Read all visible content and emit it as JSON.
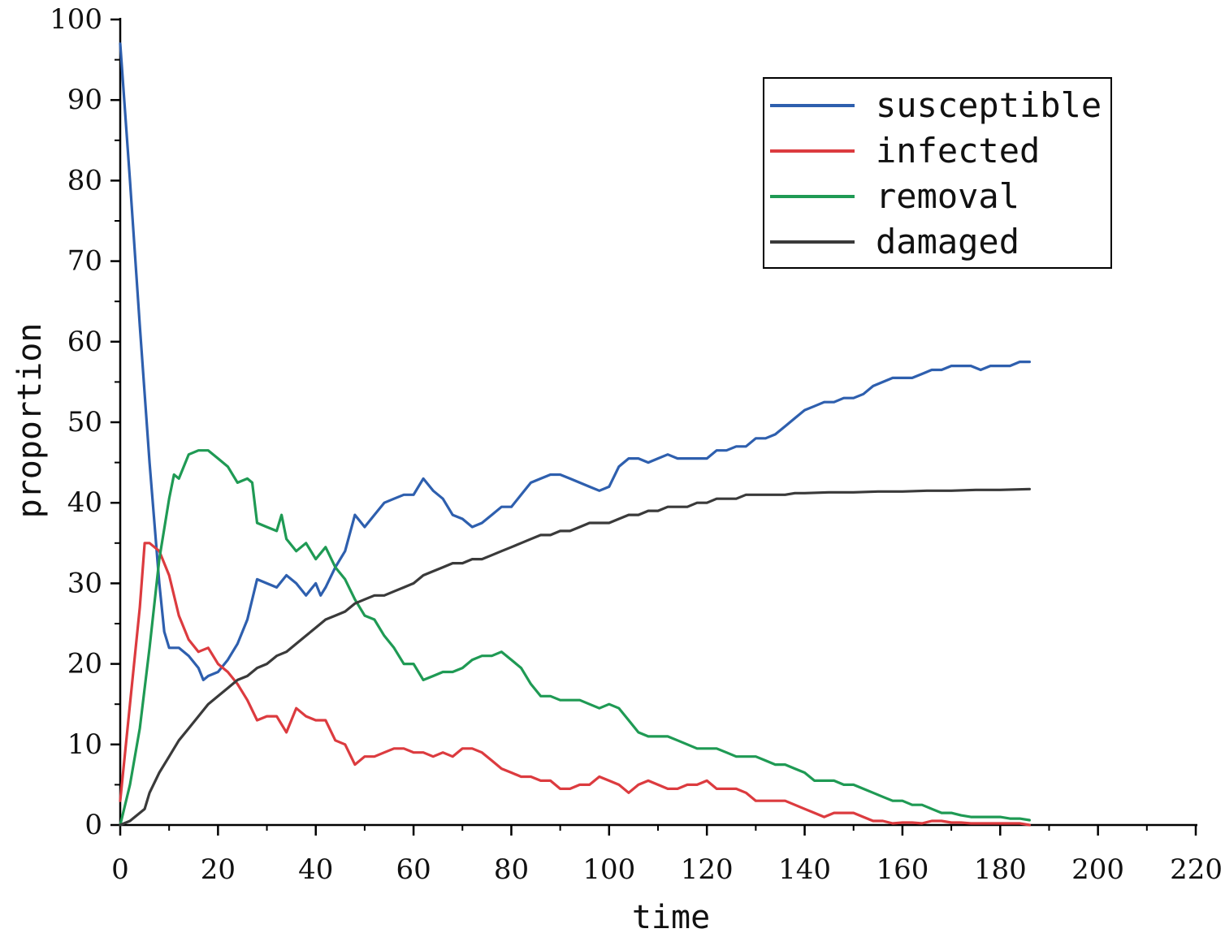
{
  "chart_data": {
    "type": "line",
    "title": "",
    "xlabel": "time",
    "ylabel": "proportion",
    "xlim": [
      0,
      220
    ],
    "ylim": [
      0,
      100
    ],
    "xticks": [
      0,
      20,
      40,
      60,
      80,
      100,
      120,
      140,
      160,
      180,
      200,
      220
    ],
    "yticks": [
      0,
      10,
      20,
      30,
      40,
      50,
      60,
      70,
      80,
      90,
      100
    ],
    "grid": false,
    "legend_position": "top-right",
    "series": [
      {
        "name": "susceptible",
        "color": "#2e5fae",
        "x": [
          0,
          2,
          4,
          6,
          8,
          9,
          10,
          12,
          14,
          16,
          17,
          18,
          20,
          22,
          24,
          26,
          28,
          30,
          32,
          34,
          36,
          38,
          40,
          41,
          42,
          44,
          46,
          48,
          50,
          52,
          54,
          56,
          58,
          60,
          62,
          64,
          66,
          68,
          70,
          72,
          74,
          76,
          78,
          80,
          82,
          84,
          86,
          88,
          90,
          92,
          94,
          96,
          98,
          100,
          102,
          104,
          106,
          108,
          110,
          112,
          114,
          116,
          118,
          120,
          122,
          124,
          126,
          128,
          130,
          132,
          134,
          136,
          138,
          140,
          142,
          144,
          146,
          148,
          150,
          152,
          154,
          156,
          158,
          160,
          162,
          164,
          166,
          168,
          170,
          172,
          174,
          176,
          178,
          180,
          182,
          184,
          186
        ],
        "values": [
          97,
          80,
          62,
          45,
          30,
          24,
          22,
          22,
          21,
          19.5,
          18,
          18.5,
          19,
          20.5,
          22.5,
          25.5,
          30.5,
          30,
          29.5,
          31,
          30,
          28.5,
          30,
          28.5,
          29.5,
          32,
          34,
          38.5,
          37,
          38.5,
          40,
          40.5,
          41,
          41,
          43,
          41.5,
          40.5,
          38.5,
          38,
          37,
          37.5,
          38.5,
          39.5,
          39.5,
          41,
          42.5,
          43,
          43.5,
          43.5,
          43,
          42.5,
          42,
          41.5,
          42,
          44.5,
          45.5,
          45.5,
          45,
          45.5,
          46,
          45.5,
          45.5,
          45.5,
          45.5,
          46.5,
          46.5,
          47,
          47,
          48,
          48,
          48.5,
          49.5,
          50.5,
          51.5,
          52,
          52.5,
          52.5,
          53,
          53,
          53.5,
          54.5,
          55,
          55.5,
          55.5,
          55.5,
          56,
          56.5,
          56.5,
          57,
          57,
          57,
          56.5,
          57,
          57,
          57,
          57.5,
          57.5
        ]
      },
      {
        "name": "infected",
        "color": "#dc3b3f",
        "x": [
          0,
          2,
          4,
          5,
          6,
          8,
          10,
          12,
          14,
          16,
          18,
          20,
          22,
          24,
          26,
          28,
          30,
          32,
          34,
          36,
          38,
          40,
          42,
          44,
          46,
          48,
          50,
          52,
          54,
          56,
          58,
          60,
          62,
          64,
          66,
          68,
          70,
          72,
          74,
          76,
          78,
          80,
          82,
          84,
          86,
          88,
          90,
          92,
          94,
          96,
          98,
          100,
          102,
          104,
          106,
          108,
          110,
          112,
          114,
          116,
          118,
          120,
          122,
          124,
          126,
          128,
          130,
          132,
          134,
          136,
          138,
          140,
          142,
          144,
          146,
          148,
          150,
          152,
          154,
          156,
          158,
          160,
          162,
          164,
          166,
          168,
          170,
          172,
          174,
          176,
          178,
          180,
          182,
          184,
          186
        ],
        "values": [
          3,
          15,
          27,
          35,
          35,
          34,
          31,
          26,
          23,
          21.5,
          22,
          20,
          19,
          17.5,
          15.5,
          13,
          13.5,
          13.5,
          11.5,
          14.5,
          13.5,
          13,
          13,
          10.5,
          10,
          7.5,
          8.5,
          8.5,
          9,
          9.5,
          9.5,
          9,
          9,
          8.5,
          9,
          8.5,
          9.5,
          9.5,
          9,
          8,
          7,
          6.5,
          6,
          6,
          5.5,
          5.5,
          4.5,
          4.5,
          5,
          5,
          6,
          5.5,
          5,
          4,
          5,
          5.5,
          5,
          4.5,
          4.5,
          5,
          5,
          5.5,
          4.5,
          4.5,
          4.5,
          4,
          3,
          3,
          3,
          3,
          2.5,
          2,
          1.5,
          1,
          1.5,
          1.5,
          1.5,
          1,
          0.5,
          0.5,
          0.2,
          0.3,
          0.3,
          0.2,
          0.5,
          0.5,
          0.3,
          0.3,
          0.2,
          0.2,
          0.2,
          0.2,
          0.2,
          0.2,
          0
        ]
      },
      {
        "name": "removal",
        "color": "#1f9a54",
        "x": [
          0,
          2,
          4,
          6,
          8,
          10,
          11,
          12,
          14,
          16,
          18,
          20,
          22,
          24,
          26,
          27,
          28,
          30,
          32,
          33,
          34,
          36,
          38,
          40,
          42,
          44,
          46,
          48,
          50,
          52,
          54,
          56,
          58,
          60,
          62,
          64,
          66,
          68,
          70,
          72,
          74,
          76,
          78,
          80,
          82,
          84,
          86,
          88,
          90,
          92,
          94,
          96,
          98,
          100,
          102,
          104,
          106,
          108,
          110,
          112,
          114,
          116,
          118,
          120,
          122,
          124,
          126,
          128,
          130,
          132,
          134,
          136,
          138,
          140,
          142,
          144,
          146,
          148,
          150,
          152,
          154,
          156,
          158,
          160,
          162,
          164,
          166,
          168,
          170,
          172,
          174,
          176,
          178,
          180,
          182,
          184,
          186
        ],
        "values": [
          0,
          5,
          12,
          22,
          33,
          40.5,
          43.5,
          43,
          46,
          46.5,
          46.5,
          45.5,
          44.5,
          42.5,
          43,
          42.5,
          37.5,
          37,
          36.5,
          38.5,
          35.5,
          34,
          35,
          33,
          34.5,
          32,
          30.5,
          28,
          26,
          25.5,
          23.5,
          22,
          20,
          20,
          18,
          18.5,
          19,
          19,
          19.5,
          20.5,
          21,
          21,
          21.5,
          20.5,
          19.5,
          17.5,
          16,
          16,
          15.5,
          15.5,
          15.5,
          15,
          14.5,
          15,
          14.5,
          13,
          11.5,
          11,
          11,
          11,
          10.5,
          10,
          9.5,
          9.5,
          9.5,
          9,
          8.5,
          8.5,
          8.5,
          8,
          7.5,
          7.5,
          7,
          6.5,
          5.5,
          5.5,
          5.5,
          5,
          5,
          4.5,
          4,
          3.5,
          3,
          3,
          2.5,
          2.5,
          2,
          1.5,
          1.5,
          1.2,
          1,
          1,
          1,
          1,
          0.8,
          0.8,
          0.6
        ]
      },
      {
        "name": "damaged",
        "color": "#3a3a3a",
        "x": [
          0,
          2,
          4,
          5,
          6,
          8,
          10,
          12,
          14,
          16,
          18,
          20,
          22,
          24,
          26,
          28,
          30,
          32,
          34,
          36,
          38,
          40,
          42,
          44,
          46,
          48,
          50,
          52,
          54,
          56,
          58,
          60,
          62,
          64,
          66,
          68,
          70,
          72,
          74,
          76,
          78,
          80,
          82,
          84,
          86,
          88,
          90,
          92,
          94,
          96,
          98,
          100,
          102,
          104,
          106,
          108,
          110,
          112,
          114,
          116,
          118,
          120,
          122,
          124,
          126,
          128,
          130,
          132,
          134,
          136,
          138,
          140,
          145,
          150,
          155,
          160,
          165,
          170,
          175,
          180,
          186
        ],
        "values": [
          0,
          0.5,
          1.5,
          2,
          4,
          6.5,
          8.5,
          10.5,
          12,
          13.5,
          15,
          16,
          17,
          18,
          18.5,
          19.5,
          20,
          21,
          21.5,
          22.5,
          23.5,
          24.5,
          25.5,
          26,
          26.5,
          27.5,
          28,
          28.5,
          28.5,
          29,
          29.5,
          30,
          31,
          31.5,
          32,
          32.5,
          32.5,
          33,
          33,
          33.5,
          34,
          34.5,
          35,
          35.5,
          36,
          36,
          36.5,
          36.5,
          37,
          37.5,
          37.5,
          37.5,
          38,
          38.5,
          38.5,
          39,
          39,
          39.5,
          39.5,
          39.5,
          40,
          40,
          40.5,
          40.5,
          40.5,
          41,
          41,
          41,
          41,
          41,
          41.2,
          41.2,
          41.3,
          41.3,
          41.4,
          41.4,
          41.5,
          41.5,
          41.6,
          41.6,
          41.7
        ]
      }
    ]
  }
}
